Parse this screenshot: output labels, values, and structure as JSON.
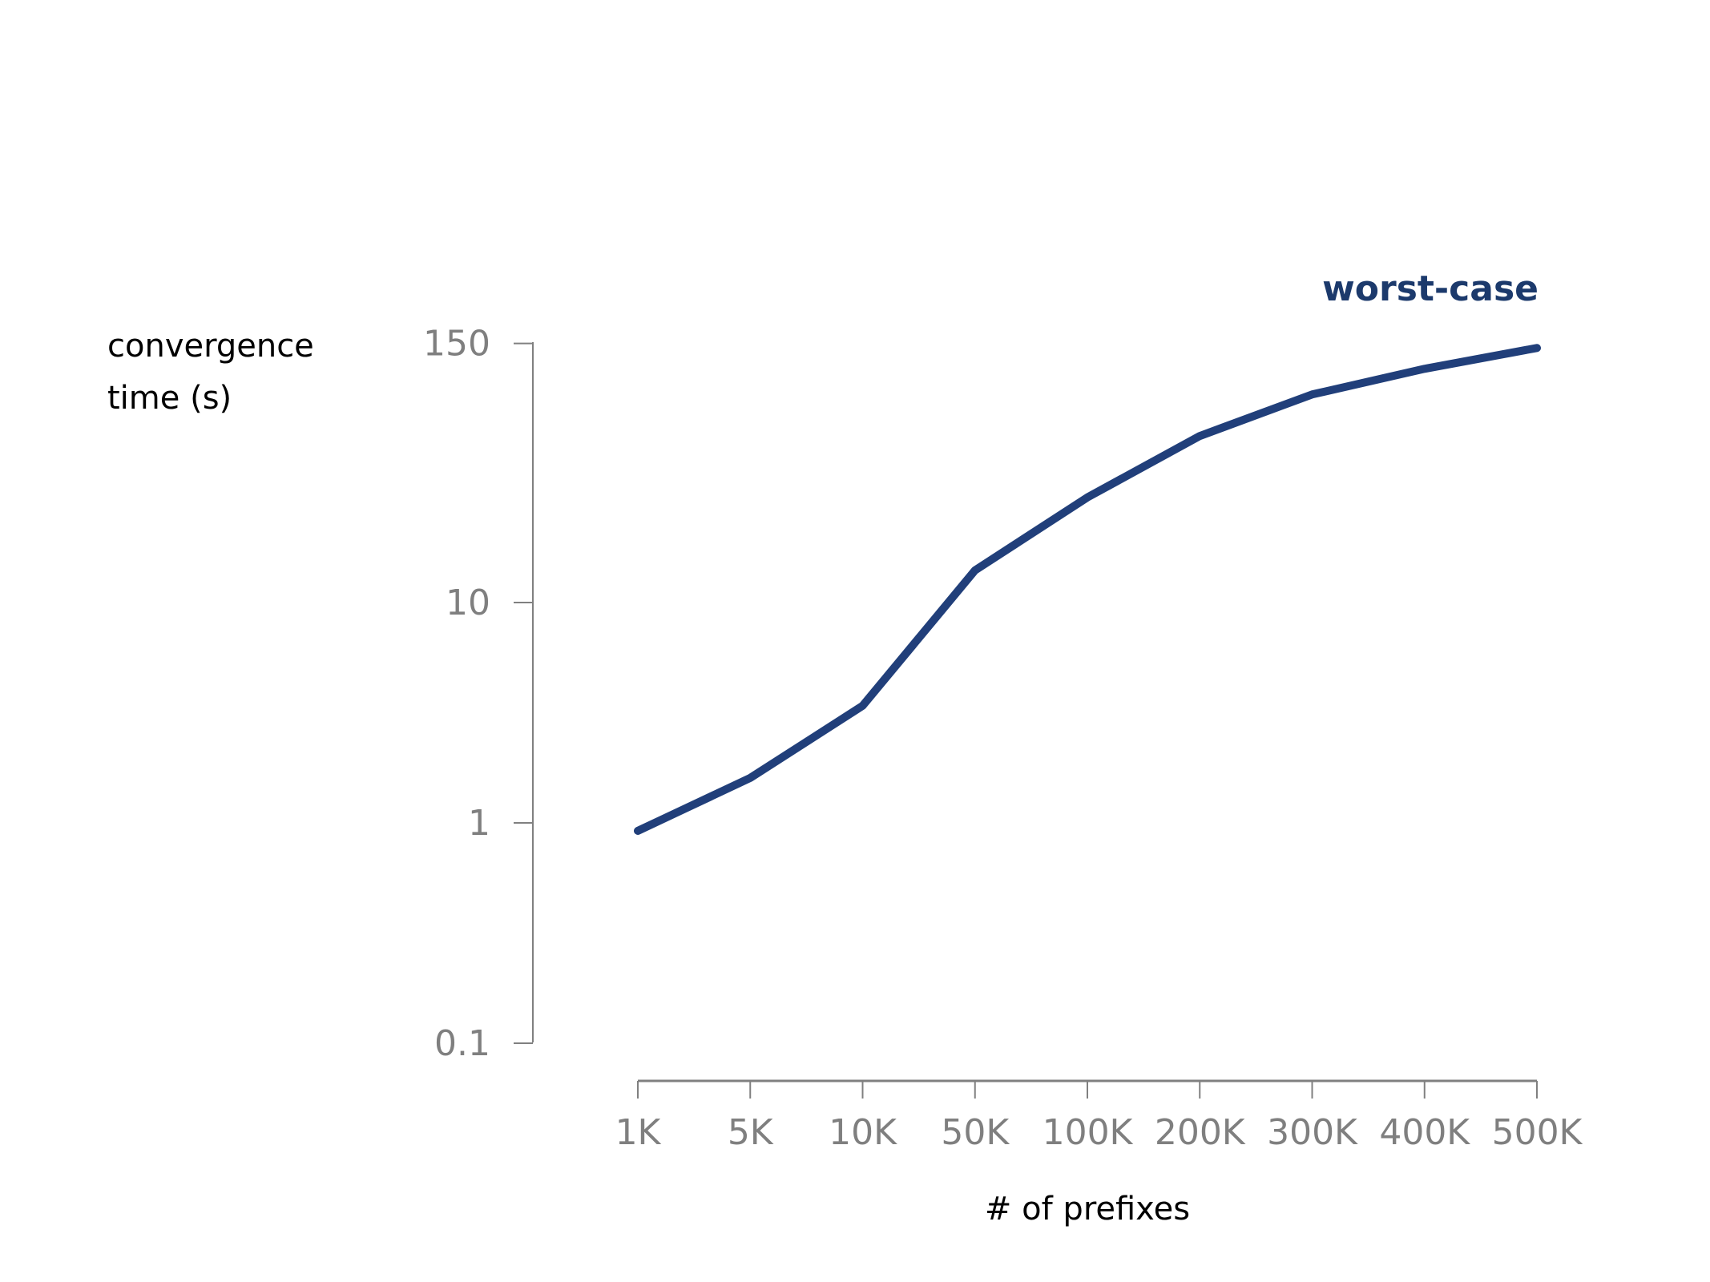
{
  "chart_data": {
    "type": "line",
    "title": "",
    "xlabel": "# of prefixes",
    "ylabel_lines": [
      "convergence",
      "time (s)"
    ],
    "yscale": "log",
    "ylim": [
      0.1,
      150
    ],
    "yticks": [
      {
        "value": 0.1,
        "label": "0.1"
      },
      {
        "value": 1,
        "label": "1"
      },
      {
        "value": 10,
        "label": "10"
      },
      {
        "value": 150,
        "label": "150"
      }
    ],
    "categories": [
      "1K",
      "5K",
      "10K",
      "50K",
      "100K",
      "200K",
      "300K",
      "400K",
      "500K"
    ],
    "series": [
      {
        "name": "worst-case",
        "color": "#213f7a",
        "label_color": "#1c3a6c",
        "values": [
          0.92,
          1.6,
          3.4,
          14,
          30,
          57,
          88,
          115,
          143
        ]
      }
    ],
    "grid": false,
    "legend": "top-right"
  }
}
